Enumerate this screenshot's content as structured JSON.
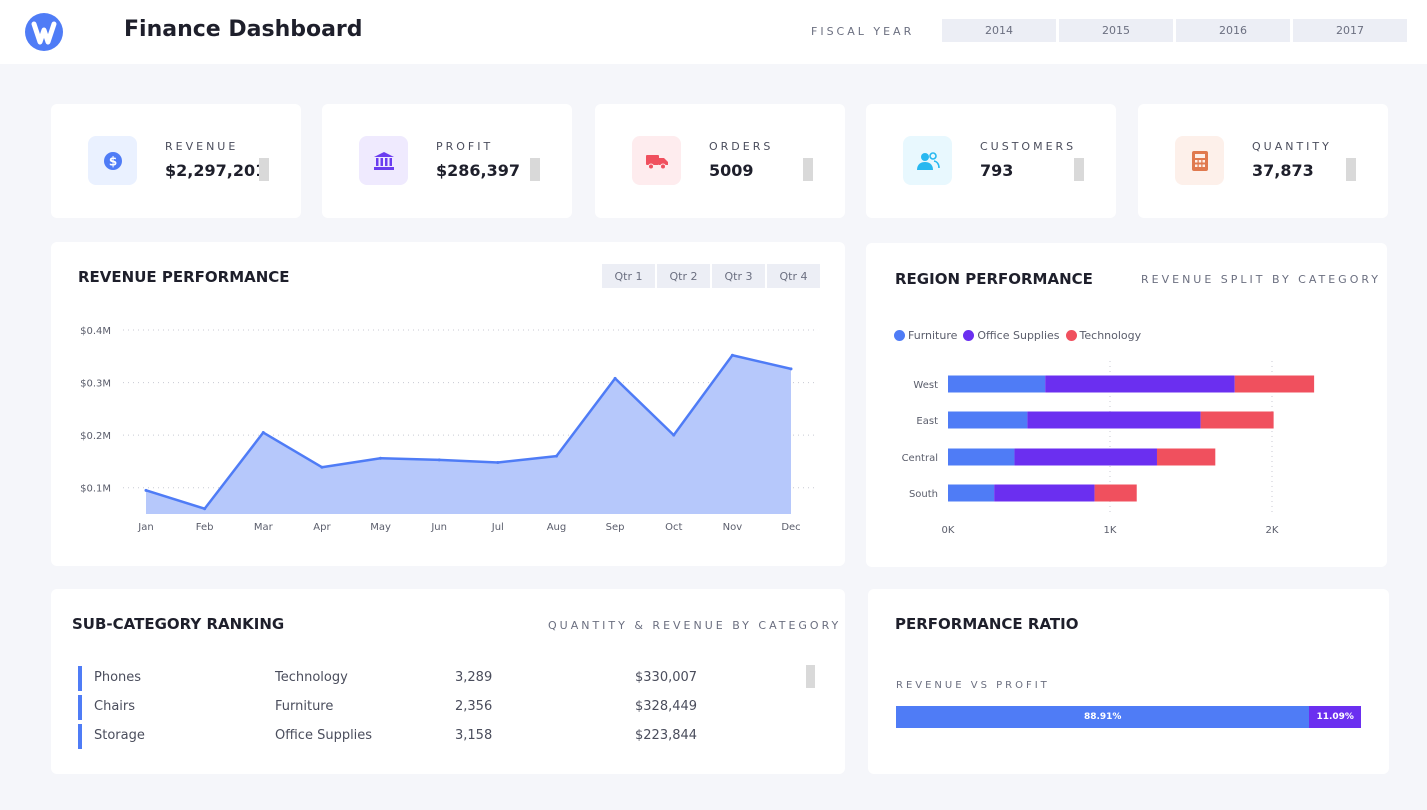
{
  "header": {
    "title": "Finance Dashboard",
    "fiscal_label": "FISCAL YEAR",
    "years": [
      "2014",
      "2015",
      "2016",
      "2017"
    ]
  },
  "kpis": [
    {
      "label": "REVENUE",
      "value": "$2,297,201",
      "icon": "dollar-circle-icon",
      "color": "#4f7cf6",
      "bg": "#eaf1ff"
    },
    {
      "label": "PROFIT",
      "value": "$286,397",
      "icon": "bank-icon",
      "color": "#6b3df0",
      "bg": "#efeafe"
    },
    {
      "label": "ORDERS",
      "value": "5009",
      "icon": "truck-icon",
      "color": "#f0505e",
      "bg": "#feecee"
    },
    {
      "label": "CUSTOMERS",
      "value": "793",
      "icon": "users-icon",
      "color": "#28b8f0",
      "bg": "#e8f8fe"
    },
    {
      "label": "QUANTITY",
      "value": "37,873",
      "icon": "calculator-icon",
      "color": "#e07a4f",
      "bg": "#fdf0ea"
    }
  ],
  "revenue_performance": {
    "title": "REVENUE PERFORMANCE",
    "quarters": [
      "Qtr 1",
      "Qtr 2",
      "Qtr 3",
      "Qtr 4"
    ]
  },
  "region_performance": {
    "title": "REGION PERFORMANCE",
    "subtitle": "REVENUE SPLIT BY CATEGORY"
  },
  "subcategory": {
    "title": "SUB-CATEGORY RANKING",
    "subtitle": "QUANTITY & REVENUE BY CATEGORY",
    "rows": [
      {
        "name": "Phones",
        "category": "Technology",
        "quantity": "3,289",
        "revenue": "$330,007"
      },
      {
        "name": "Chairs",
        "category": "Furniture",
        "quantity": "2,356",
        "revenue": "$328,449"
      },
      {
        "name": "Storage",
        "category": "Office Supplies",
        "quantity": "3,158",
        "revenue": "$223,844"
      }
    ]
  },
  "performance_ratio": {
    "title": "PERFORMANCE RATIO",
    "subtitle": "REVENUE VS PROFIT",
    "revenue_pct": 88.91,
    "profit_pct": 11.09,
    "revenue_label": "88.91%",
    "profit_label": "11.09%",
    "revenue_color": "#4f7cf6",
    "profit_color": "#6b2ff0"
  },
  "chart_data": [
    {
      "type": "area",
      "categories": [
        "Jan",
        "Feb",
        "Mar",
        "Apr",
        "May",
        "Jun",
        "Jul",
        "Aug",
        "Sep",
        "Oct",
        "Nov",
        "Dec"
      ],
      "values": [
        0.095,
        0.06,
        0.205,
        0.139,
        0.156,
        0.153,
        0.148,
        0.16,
        0.308,
        0.2,
        0.352,
        0.326
      ],
      "yticks": [
        0.1,
        0.2,
        0.3,
        0.4
      ],
      "ytick_labels": [
        "$0.1M",
        "$0.2M",
        "$0.3M",
        "$0.4M"
      ],
      "ylim": [
        0.05,
        0.4
      ],
      "grid": true,
      "line_color": "#4f7cf6",
      "fill_color": "#b6c8fb"
    },
    {
      "type": "bar",
      "orientation": "horizontal",
      "stacked": true,
      "categories": [
        "West",
        "East",
        "Central",
        "South"
      ],
      "series": [
        {
          "name": "Furniture",
          "color": "#4f7cf6",
          "values": [
            600,
            490,
            410,
            285
          ]
        },
        {
          "name": "Office Supplies",
          "color": "#6b2ff0",
          "values": [
            1170,
            1070,
            880,
            620
          ]
        },
        {
          "name": "Technology",
          "color": "#f0505e",
          "values": [
            490,
            450,
            360,
            260
          ]
        }
      ],
      "xticks": [
        0,
        1000,
        2000
      ],
      "xtick_labels": [
        "0K",
        "1K",
        "2K"
      ],
      "xlim": [
        0,
        2000
      ],
      "legend": "top-left",
      "grid": true
    }
  ]
}
